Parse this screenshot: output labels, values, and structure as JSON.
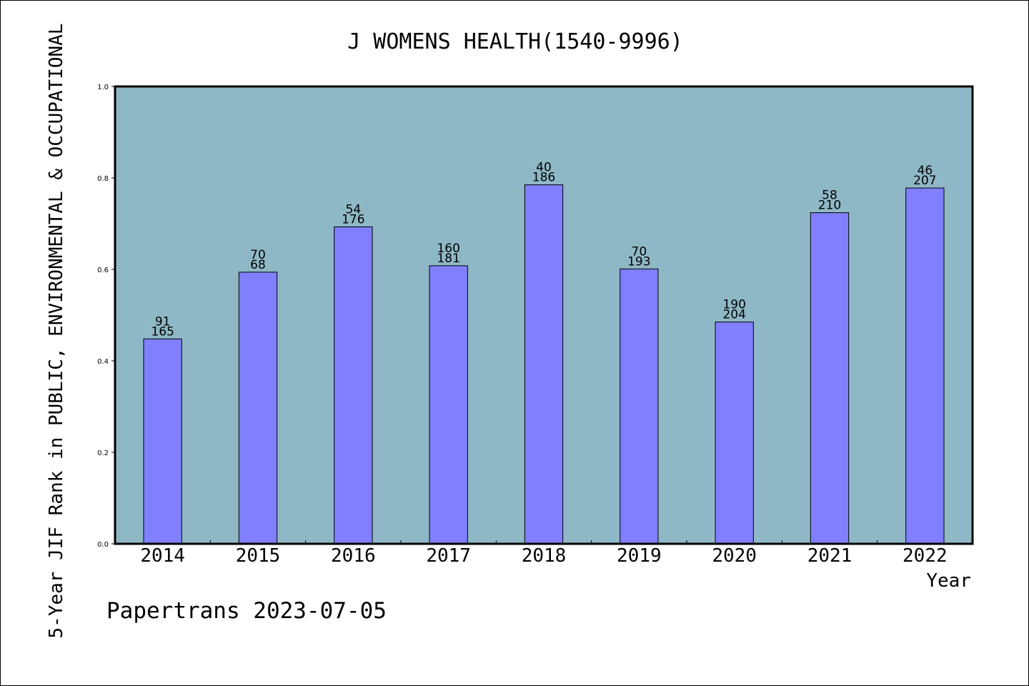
{
  "chart_data": {
    "type": "bar",
    "title": "J WOMENS HEALTH(1540-9996)",
    "xlabel": "Year",
    "ylabel": "5-Year JIF Rank in PUBLIC, ENVIRONMENTAL & OCCUPATIONAL",
    "ylim": [
      0,
      1.0
    ],
    "yticks": [
      "0.0",
      "0.2",
      "0.4",
      "0.6",
      "0.8",
      "1.0"
    ],
    "categories": [
      "2014",
      "2015",
      "2016",
      "2017",
      "2018",
      "2019",
      "2020",
      "2021",
      "2022"
    ],
    "values": [
      0.448,
      0.594,
      0.693,
      0.608,
      0.785,
      0.601,
      0.485,
      0.724,
      0.778
    ],
    "labels_top": [
      "91",
      "70",
      "54",
      "160",
      "40",
      "70",
      "190",
      "58",
      "46"
    ],
    "labels_bottom": [
      "165",
      "68",
      "176",
      "181",
      "186",
      "193",
      "204",
      "210",
      "207"
    ],
    "grid": false,
    "colors": {
      "plot_background": "#8fb8c6",
      "bar": "#8080ff"
    }
  },
  "footer": {
    "watermark": "Papertrans 2023-07-05"
  }
}
